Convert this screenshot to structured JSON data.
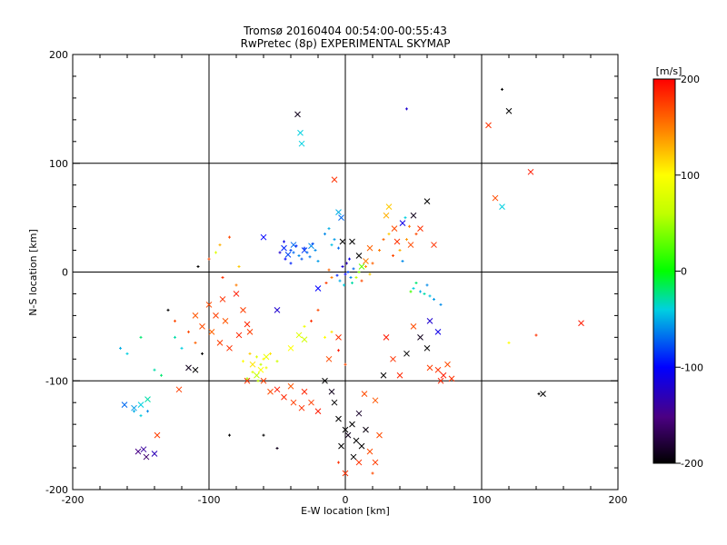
{
  "chart_data": {
    "type": "scatter",
    "title": "Tromsø 20160404 00:54:00-00:55:43",
    "subtitle": "RwPretec (8p) EXPERIMENTAL SKYMAP",
    "xlabel": "E-W location [km]",
    "ylabel": "N-S location [km]",
    "xlim": [
      -200,
      200
    ],
    "ylim": [
      -200,
      200
    ],
    "xticks": [
      "-200",
      "-100",
      "0",
      "100",
      "200"
    ],
    "yticks": [
      "-200",
      "-100",
      "0",
      "100",
      "200"
    ],
    "grid": "major lines at -100, 0, 100",
    "colorbar": {
      "label": "[m/s]",
      "range": [
        -200,
        200
      ],
      "ticks": [
        "200",
        "100",
        "0",
        "-100",
        "-200"
      ],
      "colormap": "rainbow (black-purple-blue-cyan-green-yellow-orange-red)"
    },
    "series": [
      {
        "marker": "x",
        "points": [
          [
            -35,
            145,
            -190
          ],
          [
            -33,
            128,
            -40
          ],
          [
            -32,
            118,
            -40
          ],
          [
            -45,
            22,
            -90
          ],
          [
            -42,
            16,
            -80
          ],
          [
            -38,
            25,
            -70
          ],
          [
            -30,
            20,
            -85
          ],
          [
            -25,
            24,
            -60
          ],
          [
            -5,
            55,
            -50
          ],
          [
            -3,
            50,
            -70
          ],
          [
            -2,
            28,
            -200
          ],
          [
            5,
            28,
            -200
          ],
          [
            10,
            15,
            -200
          ],
          [
            12,
            5,
            30
          ],
          [
            15,
            10,
            150
          ],
          [
            18,
            22,
            160
          ],
          [
            30,
            52,
            130
          ],
          [
            32,
            60,
            120
          ],
          [
            36,
            40,
            170
          ],
          [
            38,
            28,
            180
          ],
          [
            42,
            45,
            -110
          ],
          [
            50,
            52,
            -190
          ],
          [
            48,
            25,
            170
          ],
          [
            55,
            40,
            180
          ],
          [
            60,
            65,
            -200
          ],
          [
            65,
            25,
            180
          ],
          [
            -100,
            -30,
            170
          ],
          [
            -95,
            -40,
            175
          ],
          [
            -90,
            -25,
            180
          ],
          [
            -88,
            -45,
            165
          ],
          [
            -80,
            -20,
            190
          ],
          [
            -75,
            -35,
            175
          ],
          [
            -72,
            -48,
            185
          ],
          [
            -105,
            -50,
            170
          ],
          [
            -98,
            -55,
            160
          ],
          [
            -110,
            -40,
            165
          ],
          [
            -92,
            -65,
            175
          ],
          [
            -85,
            -70,
            180
          ],
          [
            -78,
            -58,
            185
          ],
          [
            -70,
            -55,
            175
          ],
          [
            -68,
            -85,
            110
          ],
          [
            -62,
            -90,
            100
          ],
          [
            -58,
            -78,
            90
          ],
          [
            -65,
            -95,
            60
          ],
          [
            -72,
            -100,
            180
          ],
          [
            -60,
            -100,
            175
          ],
          [
            -55,
            -110,
            170
          ],
          [
            -50,
            -108,
            190
          ],
          [
            -45,
            -115,
            185
          ],
          [
            -40,
            -105,
            165
          ],
          [
            -38,
            -120,
            175
          ],
          [
            -32,
            -125,
            180
          ],
          [
            -30,
            -110,
            185
          ],
          [
            -25,
            -120,
            175
          ],
          [
            -20,
            -128,
            190
          ],
          [
            -15,
            -100,
            -200
          ],
          [
            -10,
            -110,
            -190
          ],
          [
            -8,
            -120,
            -200
          ],
          [
            -5,
            -135,
            -200
          ],
          [
            0,
            -145,
            -200
          ],
          [
            2,
            -150,
            -190
          ],
          [
            5,
            -140,
            -200
          ],
          [
            8,
            -155,
            -200
          ],
          [
            10,
            -130,
            -185
          ],
          [
            12,
            -160,
            -200
          ],
          [
            15,
            -145,
            -195
          ],
          [
            -3,
            -160,
            -200
          ],
          [
            6,
            -170,
            -200
          ],
          [
            0,
            -185,
            180
          ],
          [
            10,
            -175,
            180
          ],
          [
            18,
            -165,
            170
          ],
          [
            22,
            -175,
            175
          ],
          [
            25,
            -150,
            170
          ],
          [
            14,
            -112,
            170
          ],
          [
            22,
            -118,
            165
          ],
          [
            28,
            -95,
            -200
          ],
          [
            30,
            -60,
            190
          ],
          [
            35,
            -80,
            180
          ],
          [
            40,
            -95,
            185
          ],
          [
            45,
            -75,
            -200
          ],
          [
            50,
            -50,
            170
          ],
          [
            55,
            -60,
            -190
          ],
          [
            60,
            -70,
            -200
          ],
          [
            62,
            -45,
            -120
          ],
          [
            68,
            -55,
            -110
          ],
          [
            62,
            -88,
            175
          ],
          [
            68,
            -90,
            180
          ],
          [
            72,
            -95,
            190
          ],
          [
            75,
            -85,
            170
          ],
          [
            70,
            -100,
            185
          ],
          [
            78,
            -98,
            180
          ],
          [
            -122,
            -108,
            175
          ],
          [
            -138,
            -150,
            175
          ],
          [
            -145,
            -117,
            -30
          ],
          [
            -150,
            -122,
            -40
          ],
          [
            -155,
            -125,
            -55
          ],
          [
            -162,
            -122,
            -70
          ],
          [
            -148,
            -163,
            -140
          ],
          [
            -152,
            -165,
            -150
          ],
          [
            -146,
            -170,
            -160
          ],
          [
            -140,
            -167,
            -130
          ],
          [
            105,
            135,
            180
          ],
          [
            120,
            148,
            -200
          ],
          [
            110,
            68,
            170
          ],
          [
            115,
            60,
            -40
          ],
          [
            136,
            92,
            190
          ],
          [
            173,
            -47,
            190
          ],
          [
            145,
            -112,
            -200
          ],
          [
            -60,
            32,
            -100
          ],
          [
            -110,
            -90,
            -200
          ],
          [
            -115,
            -88,
            -190
          ],
          [
            -5,
            -60,
            180
          ],
          [
            -50,
            -35,
            -120
          ],
          [
            -20,
            -15,
            -100
          ],
          [
            -40,
            -70,
            100
          ],
          [
            -34,
            -58,
            80
          ],
          [
            -30,
            -62,
            70
          ],
          [
            -12,
            -80,
            170
          ],
          [
            -8,
            85,
            180
          ]
        ]
      },
      {
        "marker": "+",
        "points": [
          [
            -40,
            20,
            -80
          ],
          [
            -38,
            18,
            -70
          ],
          [
            -36,
            24,
            -90
          ],
          [
            -34,
            15,
            -60
          ],
          [
            -32,
            12,
            -75
          ],
          [
            -30,
            22,
            -85
          ],
          [
            -28,
            18,
            -70
          ],
          [
            -26,
            14,
            -65
          ],
          [
            -24,
            26,
            -80
          ],
          [
            -22,
            20,
            -60
          ],
          [
            -20,
            10,
            -55
          ],
          [
            -45,
            28,
            -110
          ],
          [
            -48,
            18,
            -120
          ],
          [
            -44,
            12,
            -100
          ],
          [
            -40,
            8,
            -90
          ],
          [
            -15,
            35,
            -60
          ],
          [
            -12,
            40,
            -50
          ],
          [
            -10,
            25,
            -45
          ],
          [
            -8,
            30,
            -55
          ],
          [
            -5,
            22,
            -70
          ],
          [
            -2,
            5,
            -120
          ],
          [
            0,
            -2,
            -100
          ],
          [
            2,
            0,
            -80
          ],
          [
            4,
            -5,
            -60
          ],
          [
            6,
            3,
            -70
          ],
          [
            -4,
            -8,
            -50
          ],
          [
            -6,
            -3,
            -90
          ],
          [
            1,
            8,
            -130
          ],
          [
            3,
            12,
            -110
          ],
          [
            -1,
            -12,
            -40
          ],
          [
            5,
            -10,
            -30
          ],
          [
            8,
            -5,
            60
          ],
          [
            10,
            0,
            40
          ],
          [
            12,
            -8,
            170
          ],
          [
            -10,
            -5,
            150
          ],
          [
            -12,
            2,
            160
          ],
          [
            -14,
            -10,
            175
          ],
          [
            15,
            5,
            140
          ],
          [
            18,
            -2,
            120
          ],
          [
            20,
            8,
            160
          ],
          [
            50,
            -15,
            -40
          ],
          [
            55,
            -18,
            -50
          ],
          [
            58,
            -20,
            -30
          ],
          [
            62,
            -22,
            -45
          ],
          [
            65,
            -25,
            -55
          ],
          [
            60,
            -12,
            -60
          ],
          [
            52,
            -10,
            -20
          ],
          [
            48,
            -18,
            20
          ],
          [
            70,
            -30,
            -60
          ],
          [
            -60,
            -80,
            100
          ],
          [
            -62,
            -85,
            60
          ],
          [
            -65,
            -78,
            80
          ],
          [
            -58,
            -88,
            90
          ],
          [
            -55,
            -75,
            110
          ],
          [
            -50,
            -82,
            70
          ],
          [
            -70,
            -75,
            120
          ],
          [
            -75,
            -82,
            100
          ],
          [
            -68,
            -92,
            80
          ],
          [
            -64,
            -100,
            60
          ],
          [
            -72,
            -98,
            50
          ],
          [
            -110,
            -65,
            160
          ],
          [
            -120,
            -70,
            -40
          ],
          [
            -125,
            -60,
            -30
          ],
          [
            -115,
            -55,
            170
          ],
          [
            -105,
            -75,
            -200
          ],
          [
            -108,
            5,
            -200
          ],
          [
            -100,
            12,
            170
          ],
          [
            -95,
            18,
            80
          ],
          [
            -92,
            25,
            130
          ],
          [
            -85,
            32,
            170
          ],
          [
            -90,
            -5,
            180
          ],
          [
            -80,
            -12,
            150
          ],
          [
            -78,
            5,
            120
          ],
          [
            -30,
            -50,
            90
          ],
          [
            -25,
            -45,
            180
          ],
          [
            -20,
            -35,
            170
          ],
          [
            -15,
            -60,
            100
          ],
          [
            -10,
            -55,
            110
          ],
          [
            -5,
            -72,
            190
          ],
          [
            0,
            -85,
            170
          ],
          [
            25,
            20,
            150
          ],
          [
            28,
            30,
            160
          ],
          [
            32,
            35,
            120
          ],
          [
            35,
            15,
            170
          ],
          [
            40,
            20,
            130
          ],
          [
            42,
            10,
            -60
          ],
          [
            45,
            30,
            140
          ],
          [
            44,
            50,
            -40
          ],
          [
            47,
            42,
            150
          ],
          [
            52,
            35,
            170
          ],
          [
            45,
            150,
            -120
          ],
          [
            115,
            168,
            -200
          ],
          [
            142,
            -112,
            -200
          ],
          [
            120,
            -65,
            100
          ],
          [
            140,
            -58,
            180
          ],
          [
            -155,
            -128,
            -50
          ],
          [
            -150,
            -132,
            -40
          ],
          [
            -145,
            -128,
            -60
          ],
          [
            -140,
            -90,
            -30
          ],
          [
            -135,
            -95,
            -20
          ],
          [
            -160,
            -75,
            -40
          ],
          [
            -165,
            -70,
            -50
          ],
          [
            -150,
            -60,
            -20
          ],
          [
            -130,
            -35,
            -200
          ],
          [
            -125,
            -45,
            170
          ],
          [
            -85,
            -150,
            -200
          ],
          [
            -60,
            -150,
            -200
          ],
          [
            -50,
            -162,
            -190
          ],
          [
            -5,
            -175,
            180
          ],
          [
            20,
            -185,
            170
          ]
        ]
      }
    ]
  }
}
